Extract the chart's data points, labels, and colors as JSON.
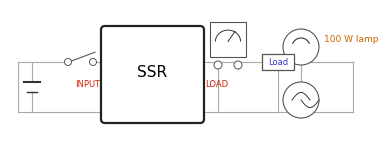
{
  "bg_color": "#ffffff",
  "line_color": "#999999",
  "ssr_label": {
    "text": "SSR",
    "color": "#000000",
    "fontsize": 11
  },
  "input_label": {
    "text": "INPUT",
    "color": "#cc2200",
    "fontsize": 6
  },
  "load_label": {
    "text": "LOAD",
    "color": "#cc2200",
    "fontsize": 6
  },
  "load_box_label": {
    "text": "Load",
    "color": "#3333cc",
    "fontsize": 6
  },
  "lamp_label": {
    "text": "100 W lamp",
    "color": "#cc6600",
    "fontsize": 6.5
  },
  "wire_color": "#aaaaaa",
  "component_color": "#555555",
  "dark_color": "#333333"
}
